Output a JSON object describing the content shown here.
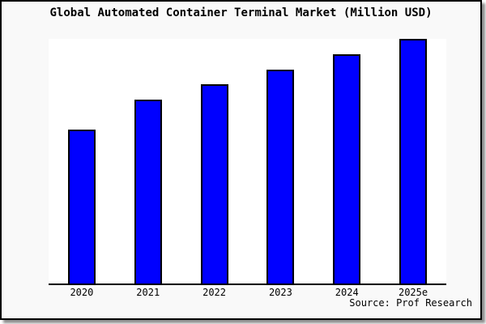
{
  "figure": {
    "title": "Global Automated Container Terminal Market (Million USD)",
    "source": "Source: Prof Research"
  },
  "chart_data": {
    "type": "bar",
    "title": "Global Automated Container Terminal Market (Million USD)",
    "unit": "Million USD",
    "categories": [
      "2020",
      "2021",
      "2022",
      "2023",
      "2024",
      "2025e"
    ],
    "relative_heights_pct_of_plot": [
      62.3,
      74.5,
      80.8,
      86.8,
      93.0,
      99.3
    ],
    "relative_values_pct_of_2025e": [
      62.7,
      75.0,
      81.3,
      87.3,
      93.7,
      100
    ],
    "xlabel": "",
    "ylabel": "",
    "y_axis_ticks": "none (unlabeled axis)",
    "grid": false,
    "legend": "none",
    "bar_color": "#0000ff",
    "bar_edge_color": "#000000",
    "plot_bg": "#ffffff",
    "figure_bg": "#f9f9f9",
    "frame_border_color": "#000000",
    "source_note": "Source: Prof Research"
  }
}
